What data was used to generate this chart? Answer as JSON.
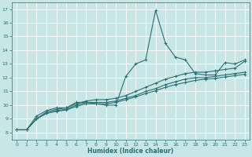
{
  "xlabel": "Humidex (Indice chaleur)",
  "xlim": [
    -0.5,
    23.5
  ],
  "ylim": [
    7.5,
    17.5
  ],
  "yticks": [
    8,
    9,
    10,
    11,
    12,
    13,
    14,
    15,
    16,
    17
  ],
  "xticks": [
    0,
    1,
    2,
    3,
    4,
    5,
    6,
    7,
    8,
    9,
    10,
    11,
    12,
    13,
    14,
    15,
    16,
    17,
    18,
    19,
    20,
    21,
    22,
    23
  ],
  "bg_color": "#c8e6e6",
  "grid_color": "#ffffff",
  "line_color": "#2a7070",
  "series": [
    {
      "x": [
        0,
        1,
        2,
        3,
        4,
        5,
        6,
        7,
        8,
        9,
        10,
        11,
        12,
        13,
        14,
        15,
        16,
        17,
        18,
        19,
        20,
        21,
        22,
        23
      ],
      "y": [
        8.2,
        8.2,
        9.2,
        9.6,
        9.8,
        9.8,
        10.2,
        10.2,
        10.1,
        10.0,
        10.0,
        12.1,
        13.0,
        13.3,
        16.9,
        14.5,
        13.5,
        13.3,
        12.3,
        12.2,
        12.2,
        13.1,
        13.0,
        13.3
      ]
    },
    {
      "x": [
        0,
        1,
        2,
        3,
        4,
        5,
        6,
        7,
        8,
        9,
        10,
        11,
        12,
        13,
        14,
        15,
        16,
        17,
        18,
        19,
        20,
        21,
        22,
        23
      ],
      "y": [
        8.2,
        8.2,
        9.0,
        9.5,
        9.7,
        9.8,
        10.1,
        10.3,
        10.4,
        10.4,
        10.5,
        10.7,
        11.0,
        11.3,
        11.6,
        11.9,
        12.1,
        12.3,
        12.4,
        12.4,
        12.5,
        12.6,
        12.7,
        13.2
      ]
    },
    {
      "x": [
        0,
        1,
        2,
        3,
        4,
        5,
        6,
        7,
        8,
        9,
        10,
        11,
        12,
        13,
        14,
        15,
        16,
        17,
        18,
        19,
        20,
        21,
        22,
        23
      ],
      "y": [
        8.2,
        8.2,
        9.0,
        9.4,
        9.6,
        9.7,
        10.0,
        10.2,
        10.2,
        10.2,
        10.3,
        10.5,
        10.7,
        11.0,
        11.2,
        11.5,
        11.7,
        11.9,
        12.0,
        12.0,
        12.1,
        12.2,
        12.3,
        12.4
      ]
    },
    {
      "x": [
        0,
        1,
        2,
        3,
        4,
        5,
        6,
        7,
        8,
        9,
        10,
        11,
        12,
        13,
        14,
        15,
        16,
        17,
        18,
        19,
        20,
        21,
        22,
        23
      ],
      "y": [
        8.2,
        8.2,
        9.0,
        9.4,
        9.55,
        9.65,
        9.9,
        10.1,
        10.1,
        10.1,
        10.2,
        10.4,
        10.6,
        10.85,
        11.05,
        11.3,
        11.5,
        11.65,
        11.8,
        11.9,
        11.95,
        12.05,
        12.15,
        12.25
      ]
    }
  ]
}
